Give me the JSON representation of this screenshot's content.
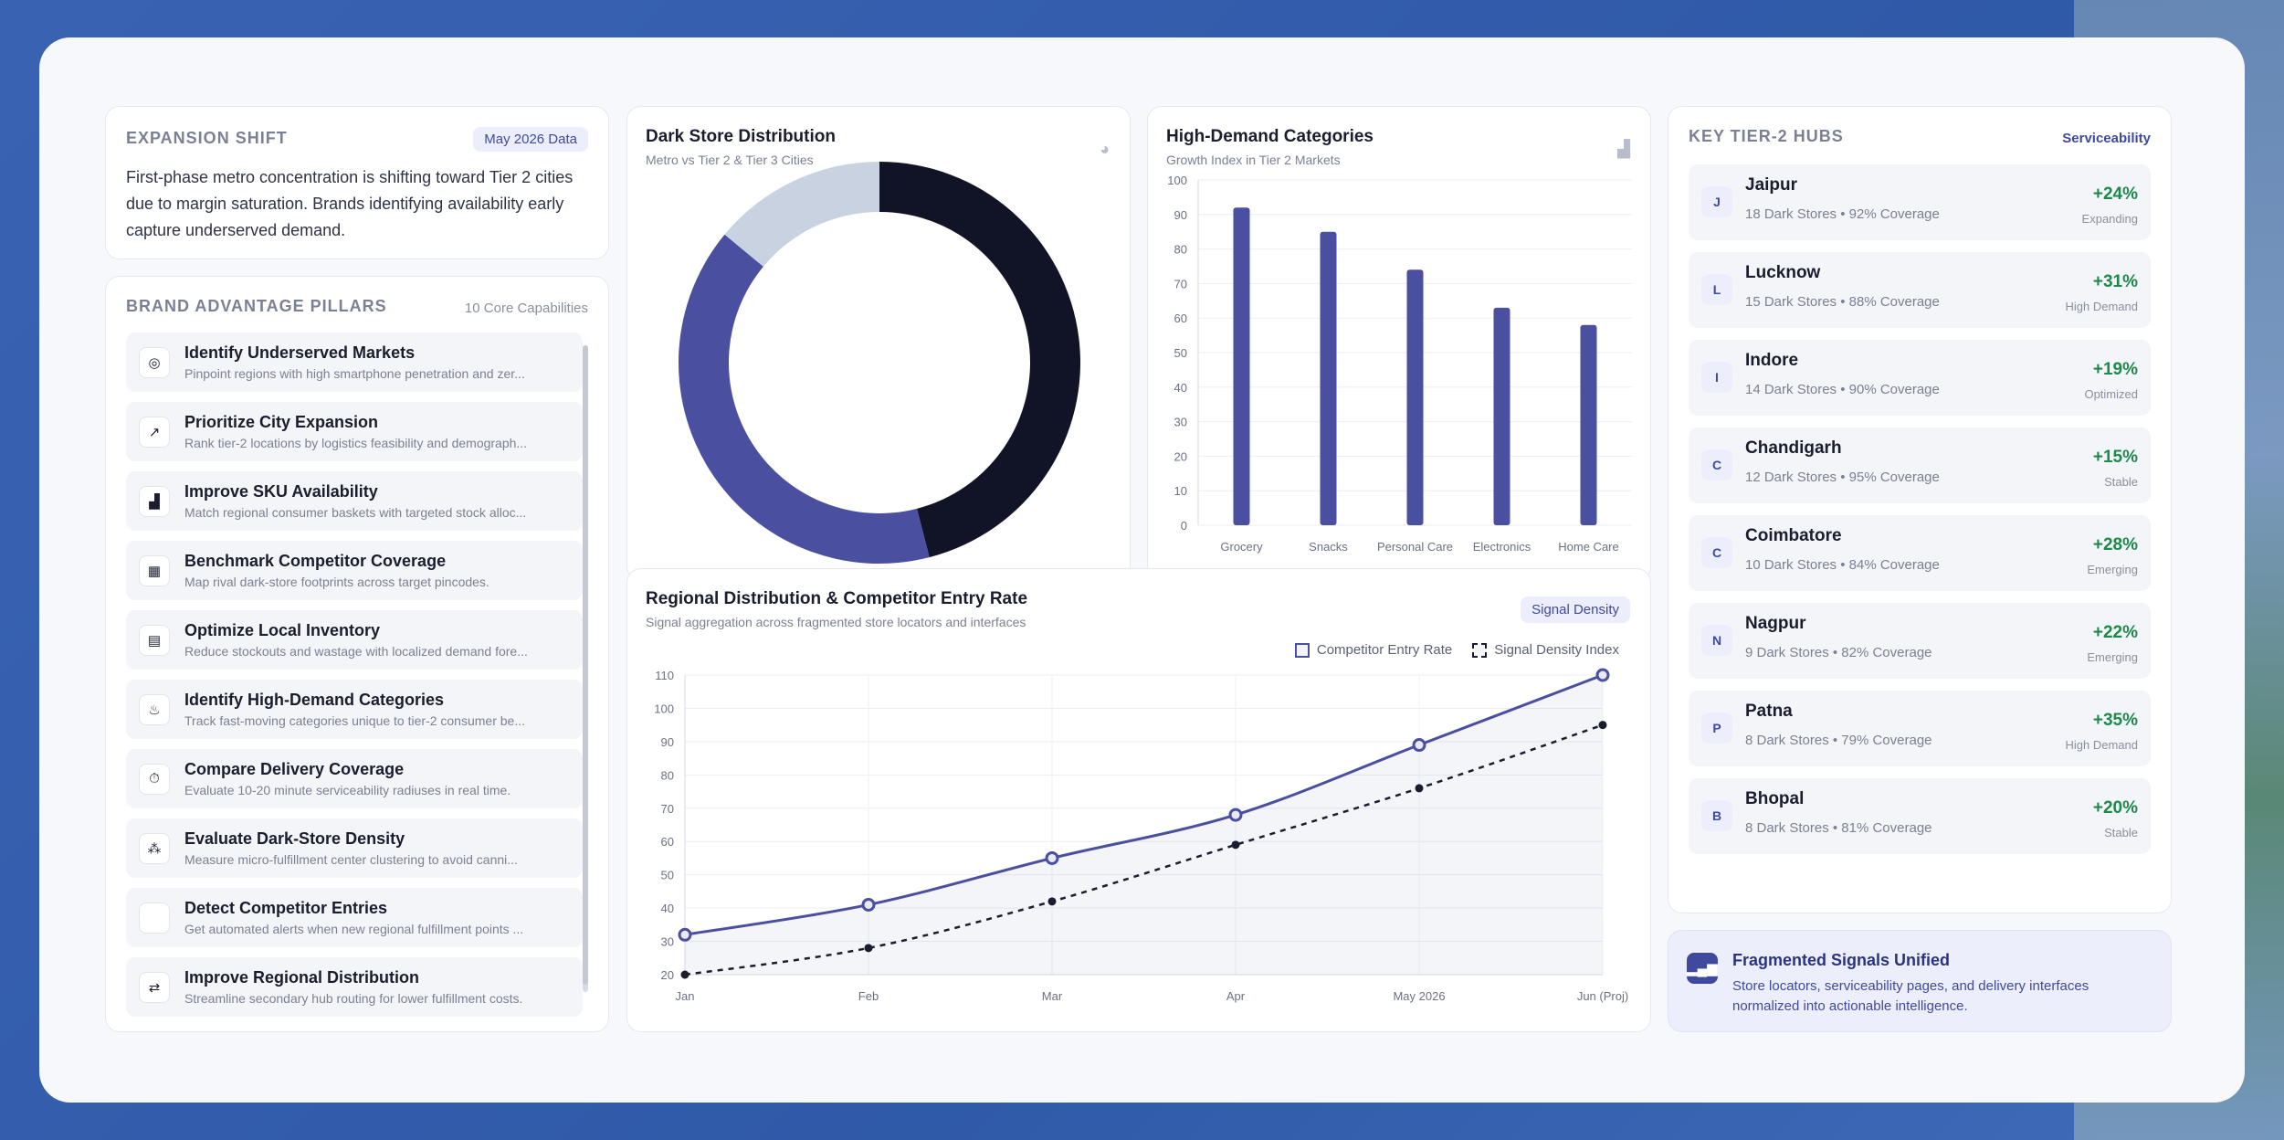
{
  "expansion": {
    "title": "Expansion Shift",
    "badge": "May 2026 Data",
    "body": "First-phase metro concentration is shifting toward Tier 2 cities due to margin saturation. Brands identifying availability early capture underserved demand."
  },
  "pillars": {
    "title": "Brand Advantage Pillars",
    "count": "10 Core Capabilities",
    "items": [
      {
        "icon": "target-icon",
        "glyph": "◎",
        "title": "Identify Underserved Markets",
        "desc": "Pinpoint regions with high smartphone penetration and zer..."
      },
      {
        "icon": "trend-up-icon",
        "glyph": "↗",
        "title": "Prioritize City Expansion",
        "desc": "Rank tier-2 locations by logistics feasibility and demograph..."
      },
      {
        "icon": "bar-chart-icon",
        "glyph": "▟",
        "title": "Improve SKU Availability",
        "desc": "Match regional consumer baskets with targeted stock alloc..."
      },
      {
        "icon": "grid-icon",
        "glyph": "▦",
        "title": "Benchmark Competitor Coverage",
        "desc": "Map rival dark-store footprints across target pincodes."
      },
      {
        "icon": "warehouse-icon",
        "glyph": "▤",
        "title": "Optimize Local Inventory",
        "desc": "Reduce stockouts and wastage with localized demand fore..."
      },
      {
        "icon": "flame-icon",
        "glyph": "♨",
        "title": "Identify High-Demand Categories",
        "desc": "Track fast-moving categories unique to tier-2 consumer be..."
      },
      {
        "icon": "stopwatch-icon",
        "glyph": "⏱",
        "title": "Compare Delivery Coverage",
        "desc": "Evaluate 10-20 minute serviceability radiuses in real time."
      },
      {
        "icon": "cluster-icon",
        "glyph": "⁂",
        "title": "Evaluate Dark-Store Density",
        "desc": "Measure micro-fulfillment center clustering to avoid canni..."
      },
      {
        "icon": "alert-icon",
        "glyph": "",
        "title": "Detect Competitor Entries",
        "desc": "Get automated alerts when new regional fulfillment points ..."
      },
      {
        "icon": "route-icon",
        "glyph": "⇄",
        "title": "Improve Regional Distribution",
        "desc": "Streamline secondary hub routing for lower fulfillment costs."
      }
    ]
  },
  "donut_card": {
    "title": "Dark Store Distribution",
    "subtitle": "Metro vs Tier 2 & Tier 3 Cities",
    "icon": "pie-chart-icon",
    "colors": [
      "#111427",
      "#4a4fa0",
      "#c9d2e0"
    ]
  },
  "bar_card": {
    "title": "High-Demand Categories",
    "subtitle": "Growth Index in Tier 2 Markets",
    "icon": "bar-chart-icon",
    "color": "#4a4fa0"
  },
  "line_card": {
    "title": "Regional Distribution & Competitor Entry Rate",
    "subtitle": "Signal aggregation across fragmented store locators and interfaces",
    "badge": "Signal Density",
    "legend_a": "Competitor Entry Rate",
    "legend_b": "Signal Density Index"
  },
  "chart_data": [
    {
      "type": "pie",
      "variant": "donut",
      "values": [
        46,
        40,
        14
      ],
      "colors": [
        "#111427",
        "#4a4fa0",
        "#c9d2e0"
      ],
      "title": "Dark Store Distribution",
      "subtitle": "Metro vs Tier 2 & Tier 3 Cities"
    },
    {
      "type": "bar",
      "title": "High-Demand Categories",
      "subtitle": "Growth Index in Tier 2 Markets",
      "categories": [
        "Grocery",
        "Snacks",
        "Personal Care",
        "Electronics",
        "Home Care"
      ],
      "values": [
        92,
        85,
        74,
        63,
        58
      ],
      "ylim": [
        0,
        100
      ],
      "yticks": [
        0,
        10,
        20,
        30,
        40,
        50,
        60,
        70,
        80,
        90,
        100
      ],
      "grid": true
    },
    {
      "type": "line",
      "title": "Regional Distribution & Competitor Entry Rate",
      "subtitle": "Signal aggregation across fragmented store locators and interfaces",
      "x": [
        "Jan",
        "Feb",
        "Mar",
        "Apr",
        "May 2026",
        "Jun (Proj)"
      ],
      "ylim": [
        20,
        110
      ],
      "yticks": [
        20,
        30,
        40,
        50,
        60,
        70,
        80,
        90,
        100,
        110
      ],
      "legend": "top-right",
      "grid": true,
      "series": [
        {
          "name": "Competitor Entry Rate",
          "values": [
            32,
            41,
            55,
            68,
            89,
            110
          ],
          "color": "#4a4fa0",
          "style": "solid",
          "fill": true
        },
        {
          "name": "Signal Density Index",
          "values": [
            20,
            28,
            42,
            59,
            76,
            95
          ],
          "color": "#1a1d2e",
          "style": "dashed"
        }
      ]
    }
  ],
  "hubs": {
    "title": "Key Tier-2 Hubs",
    "label": "Serviceability",
    "items": [
      {
        "initial": "J",
        "name": "Jaipur",
        "meta": "18 Dark Stores • 92% Coverage",
        "growth": "+24%",
        "status": "Expanding"
      },
      {
        "initial": "L",
        "name": "Lucknow",
        "meta": "15 Dark Stores • 88% Coverage",
        "growth": "+31%",
        "status": "High Demand"
      },
      {
        "initial": "I",
        "name": "Indore",
        "meta": "14 Dark Stores • 90% Coverage",
        "growth": "+19%",
        "status": "Optimized"
      },
      {
        "initial": "C",
        "name": "Chandigarh",
        "meta": "12 Dark Stores • 95% Coverage",
        "growth": "+15%",
        "status": "Stable"
      },
      {
        "initial": "C",
        "name": "Coimbatore",
        "meta": "10 Dark Stores • 84% Coverage",
        "growth": "+28%",
        "status": "Emerging"
      },
      {
        "initial": "N",
        "name": "Nagpur",
        "meta": "9 Dark Stores • 82% Coverage",
        "growth": "+22%",
        "status": "Emerging"
      },
      {
        "initial": "P",
        "name": "Patna",
        "meta": "8 Dark Stores • 79% Coverage",
        "growth": "+35%",
        "status": "High Demand"
      },
      {
        "initial": "B",
        "name": "Bhopal",
        "meta": "8 Dark Stores • 81% Coverage",
        "growth": "+20%",
        "status": "Stable"
      }
    ]
  },
  "fragmented": {
    "icon": "signal-icon",
    "title": "Fragmented Signals Unified",
    "desc": "Store locators, serviceability pages, and delivery interfaces normalized into actionable intelligence."
  }
}
